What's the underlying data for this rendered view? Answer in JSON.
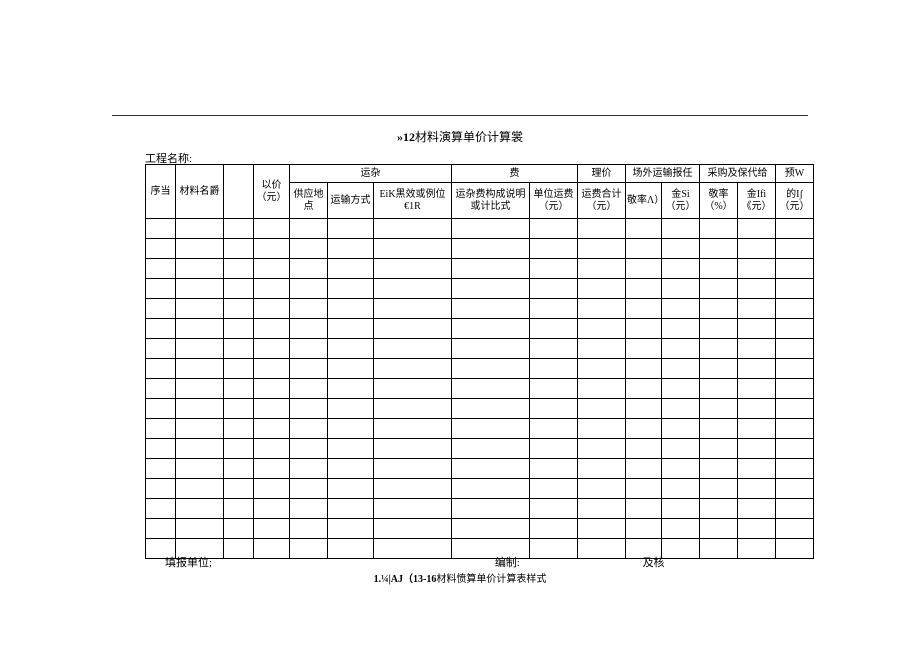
{
  "title_prefix": "»12",
  "title_rest": "材料演算单价计算裳",
  "project_label": "工程名称:",
  "headers": {
    "seq": "序当",
    "material": "材料名爵",
    "blank": "",
    "price": "以价（元）",
    "yunza": "运杂",
    "fei": "费",
    "supply": "供应地点",
    "transport": "运输方式",
    "eik": "EiK黑效或例位€1R",
    "desc": "运杂费构成说明或计比式",
    "unit_fee": "单位运费（元）",
    "li_price": "理价",
    "total_fee": "运费合计（元）",
    "out_transport": "场外运输报任",
    "procure": "采购及保代给",
    "rate1": "敬率Λ）",
    "amt1": "金Si（元）",
    "rate2": "敬率（%）",
    "amt2": "金Ifi《元）",
    "prew": "预W",
    "final": "的Ιʃ（元）"
  },
  "footer": {
    "f1": "填报单位;",
    "f2": "编制:",
    "f3": "及核"
  },
  "caption_bold": "1.¼|AJ（13-16",
  "caption_rest": "材料愤算单价计算表样式",
  "style": {
    "page_bg": "#ffffff",
    "border_color": "#000000",
    "text_color": "#000000",
    "empty_rows": 17
  }
}
